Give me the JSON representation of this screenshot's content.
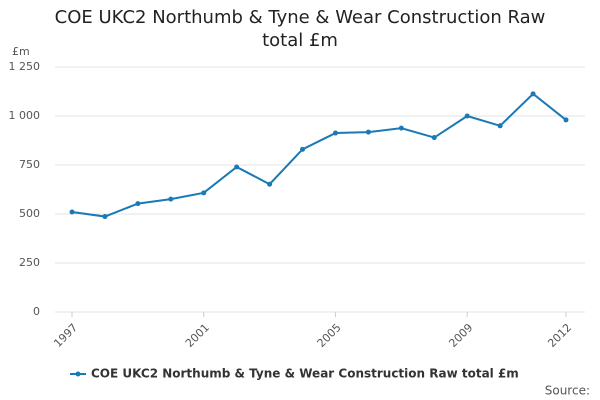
{
  "chart_data": {
    "type": "line",
    "title": "COE UKC2 Northumb & Tyne & Wear Construction Raw total £m",
    "y_label": "£m",
    "source": "Source:",
    "x": [
      1997,
      1998,
      1999,
      2000,
      2001,
      2002,
      2003,
      2004,
      2005,
      2006,
      2007,
      2008,
      2009,
      2010,
      2011,
      2012
    ],
    "xlim": [
      1997,
      2012
    ],
    "xticks": [
      1997,
      2001,
      2005,
      2009,
      2012
    ],
    "ylim": [
      0,
      1250
    ],
    "yticks": [
      0,
      250,
      500,
      750,
      {
        "value": 1000,
        "label": "1 000"
      },
      {
        "value": 1250,
        "label": "1 250"
      }
    ],
    "grid": true,
    "series": [
      {
        "name": "COE UKC2 Northumb & Tyne & Wear Construction Raw total £m",
        "color": "#1a7ab5",
        "values": [
          510,
          487,
          553,
          576,
          608,
          740,
          652,
          830,
          913,
          918,
          938,
          890,
          1000,
          950,
          1113,
          980
        ]
      }
    ]
  }
}
